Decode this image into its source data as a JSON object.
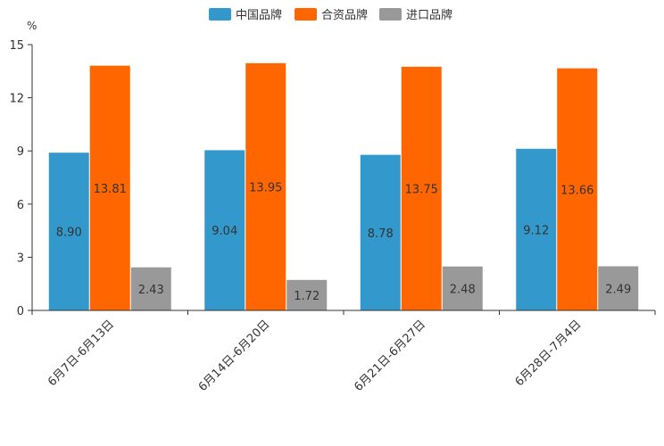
{
  "chart_data": {
    "type": "bar",
    "unit_label": "%",
    "categories": [
      "6月7日-6月13日",
      "6月14日-6月20日",
      "6月21日-6月27日",
      "6月28日-7月4日"
    ],
    "series": [
      {
        "name": "中国品牌",
        "color": "#3399cc",
        "values": [
          8.9,
          9.04,
          8.78,
          9.12
        ],
        "labels": [
          "8.90",
          "9.04",
          "8.78",
          "9.12"
        ]
      },
      {
        "name": "合资品牌",
        "color": "#ff6600",
        "values": [
          13.81,
          13.95,
          13.75,
          13.66
        ],
        "labels": [
          "13.81",
          "13.95",
          "13.75",
          "13.66"
        ]
      },
      {
        "name": "进口品牌",
        "color": "#999999",
        "values": [
          2.43,
          1.72,
          2.48,
          2.49
        ],
        "labels": [
          "2.43",
          "1.72",
          "2.48",
          "2.49"
        ]
      }
    ],
    "ylim": [
      0,
      15
    ],
    "yticks": [
      0,
      3,
      6,
      9,
      12,
      15
    ],
    "ytick_labels": [
      "0",
      "3",
      "6",
      "9",
      "12",
      "15"
    ],
    "legend_position": "top-center",
    "grid": false
  }
}
